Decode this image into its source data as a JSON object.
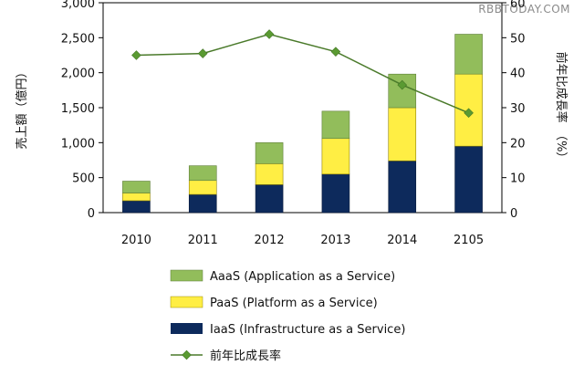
{
  "watermark": "RBBTODAY.COM",
  "legend": {
    "aaas": "AaaS (Application as a Service)",
    "paas": "PaaS (Platform as a Service)",
    "iaas": "IaaS (Infrastructure  as a Service)",
    "growth": "前年比成長率"
  },
  "chart_data": {
    "type": "bar",
    "stacked": true,
    "categories": [
      "2010",
      "2011",
      "2012",
      "2013",
      "2014",
      "2105"
    ],
    "ylabel": "売上額（億円）",
    "y2label": "前年比成長率　（%）",
    "ylim": [
      0,
      3000
    ],
    "y2lim": [
      0,
      60
    ],
    "yticks": [
      "0",
      "500",
      "1,000",
      "1,500",
      "2,000",
      "2,500",
      "3,000"
    ],
    "y2ticks": [
      "0",
      "10",
      "20",
      "30",
      "40",
      "50",
      "60"
    ],
    "series": [
      {
        "name": "IaaS (Infrastructure  as a Service)",
        "values": [
          170,
          260,
          400,
          550,
          740,
          950
        ],
        "color": "#0d2a5c"
      },
      {
        "name": "PaaS (Platform as a Service)",
        "values": [
          110,
          200,
          300,
          510,
          760,
          1030
        ],
        "color": "#ffee44"
      },
      {
        "name": "AaaS (Application as a Service)",
        "values": [
          170,
          210,
          300,
          390,
          480,
          570
        ],
        "color": "#92bd5b"
      }
    ],
    "line": {
      "name": "前年比成長率",
      "values": [
        45,
        45.5,
        51,
        46,
        36.5,
        28.5
      ],
      "color": "#4a7a2a",
      "axis": "right"
    },
    "grid": false,
    "legend_position": "bottom"
  }
}
